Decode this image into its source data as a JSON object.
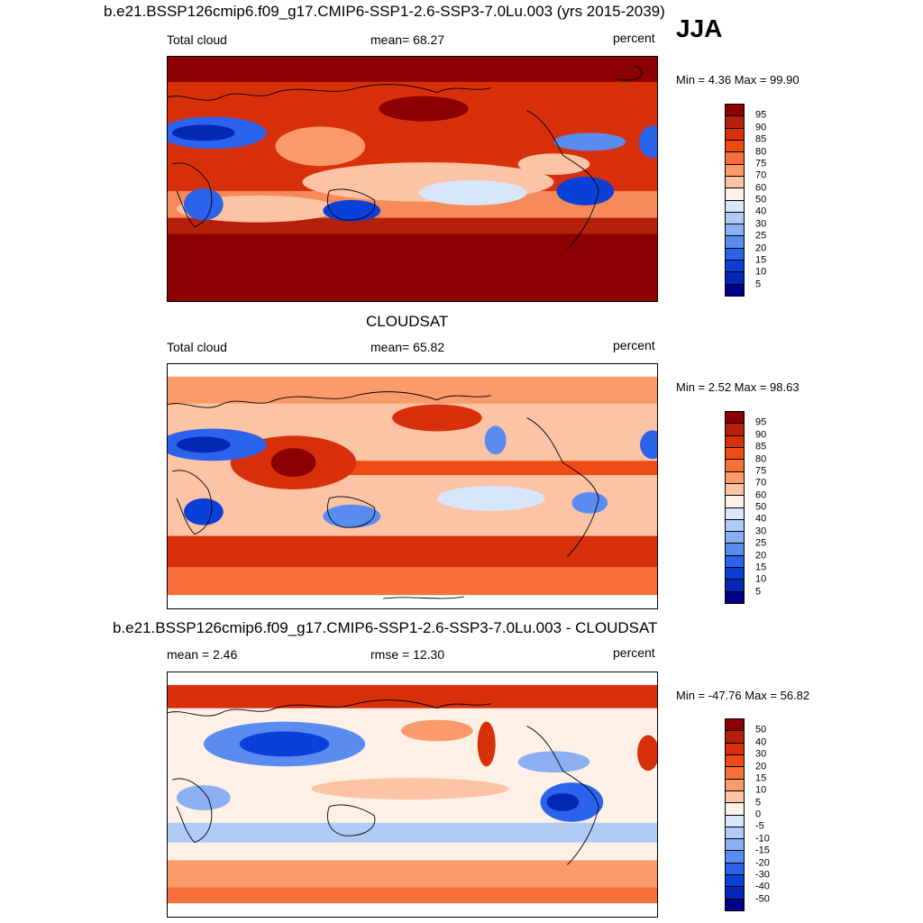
{
  "season": "JJA",
  "panels": [
    {
      "title": "b.e21.BSSP126cmip6.f09_g17.CMIP6-SSP1-2.6-SSP3-7.0Lu.003 (yrs 2015-2039)",
      "left_label": "Total cloud",
      "center_label": "mean=  68.27",
      "units": "percent",
      "minmax": "Min =   4.36 Max =  99.90",
      "colorbar_labels": [
        "95",
        "90",
        "85",
        "80",
        "75",
        "70",
        "60",
        "50",
        "40",
        "30",
        "25",
        "20",
        "15",
        "10",
        "5"
      ],
      "colorbar_colors": [
        "#8b0000",
        "#b5200a",
        "#d8300a",
        "#ef4b16",
        "#f76f3a",
        "#fb9a6a",
        "#fcc4a4",
        "#fdf0e6",
        "#d7e6fb",
        "#b0ccf6",
        "#8ab0f2",
        "#5a8cf0",
        "#2c63ec",
        "#0a3fd8",
        "#0528b4",
        "#00008b"
      ]
    },
    {
      "title": "CLOUDSAT",
      "left_label": "Total cloud",
      "center_label": "mean=  65.82",
      "units": "percent",
      "minmax": "Min =   2.52 Max =  98.63",
      "colorbar_labels": [
        "95",
        "90",
        "85",
        "80",
        "75",
        "70",
        "60",
        "50",
        "40",
        "30",
        "25",
        "20",
        "15",
        "10",
        "5"
      ],
      "colorbar_colors": [
        "#8b0000",
        "#b5200a",
        "#d8300a",
        "#ef4b16",
        "#f76f3a",
        "#fb9a6a",
        "#fcc4a4",
        "#fdf0e6",
        "#d7e6fb",
        "#b0ccf6",
        "#8ab0f2",
        "#5a8cf0",
        "#2c63ec",
        "#0a3fd8",
        "#0528b4",
        "#00008b"
      ]
    },
    {
      "title": "b.e21.BSSP126cmip6.f09_g17.CMIP6-SSP1-2.6-SSP3-7.0Lu.003 - CLOUDSAT",
      "left_label": "mean =   2.46",
      "center_label": "rmse =  12.30",
      "units": "percent",
      "minmax": "Min = -47.76 Max =  56.82",
      "colorbar_labels": [
        "50",
        "40",
        "30",
        "20",
        "15",
        "10",
        "5",
        "0",
        "-5",
        "-10",
        "-15",
        "-20",
        "-30",
        "-40",
        "-50"
      ],
      "colorbar_colors": [
        "#8b0000",
        "#b5200a",
        "#d8300a",
        "#ef4b16",
        "#f76f3a",
        "#fb9a6a",
        "#fcc4a4",
        "#fdf0e6",
        "#d7e6fb",
        "#b0ccf6",
        "#8ab0f2",
        "#5a8cf0",
        "#2c63ec",
        "#0a3fd8",
        "#0528b4",
        "#00008b"
      ]
    }
  ]
}
